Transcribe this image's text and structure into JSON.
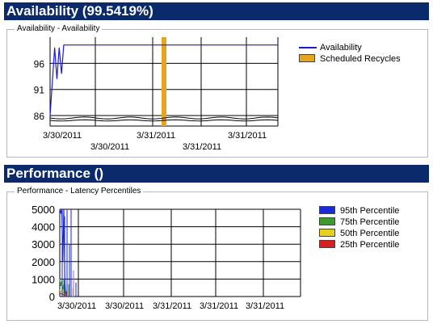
{
  "availability": {
    "header_title": "Availability (99.5419%)",
    "group_title": "Availability - Availability",
    "legend": [
      {
        "label": "Availability",
        "color": "#1a1adc",
        "kind": "line"
      },
      {
        "label": "Scheduled Recycles",
        "color": "#e6a51e",
        "kind": "box"
      }
    ]
  },
  "performance": {
    "header_title": "Performance ()",
    "group_title": "Performance - Latency Percentiles",
    "legend": [
      {
        "label": "95th Percentile",
        "color": "#1a2ad6",
        "kind": "box"
      },
      {
        "label": "75th Percentile",
        "color": "#3c9a2e",
        "kind": "box"
      },
      {
        "label": "50th Percentile",
        "color": "#e6d21e",
        "kind": "box"
      },
      {
        "label": "25th Percentile",
        "color": "#d81e1e",
        "kind": "box"
      }
    ]
  },
  "chart_data": [
    {
      "type": "line",
      "title": "Availability - Availability",
      "ylim": [
        84,
        101
      ],
      "y_ticks": [
        86,
        91,
        96
      ],
      "x_tick_labels_row1": [
        "3/30/2011",
        "3/31/2011",
        "3/31/2011"
      ],
      "x_tick_labels_row2": [
        "3/30/2011",
        "3/31/2011"
      ],
      "grid": true,
      "legend_position": "right",
      "series": [
        {
          "name": "Availability",
          "color": "#1a1adc",
          "x": [
            0,
            0.02,
            0.03,
            0.04,
            0.05,
            0.06,
            1
          ],
          "values": [
            86,
            99,
            93,
            99,
            94,
            99.5,
            99.5
          ]
        },
        {
          "name": "Scheduled Recycles",
          "color": "#e6a51e",
          "x": [
            0.5
          ],
          "values": [
            101
          ]
        }
      ]
    },
    {
      "type": "area",
      "title": "Performance - Latency Percentiles",
      "ylim": [
        0,
        5000
      ],
      "y_ticks": [
        0,
        1000,
        2000,
        3000,
        4000,
        5000
      ],
      "x_tick_labels_row1": [
        "3/30/2011",
        "3/31/2011",
        "3/31/2011"
      ],
      "x_tick_labels_row2": [
        "3/30/2011",
        "3/31/2011"
      ],
      "grid": true,
      "legend_position": "right",
      "series": [
        {
          "name": "95th Percentile",
          "color": "#1a2ad6",
          "x": [
            0,
            0.01,
            0.02,
            0.03,
            0.04,
            0.05,
            0.06
          ],
          "values": [
            5000,
            4800,
            5000,
            2000,
            5000,
            800,
            0
          ]
        },
        {
          "name": "75th Percentile",
          "color": "#3c9a2e",
          "x": [
            0,
            0.01,
            0.02,
            0.03,
            0.04,
            0.05,
            0.06
          ],
          "values": [
            1000,
            600,
            900,
            400,
            700,
            300,
            0
          ]
        },
        {
          "name": "50th Percentile",
          "color": "#e6d21e",
          "x": [
            0,
            0.01,
            0.02,
            0.03,
            0.04,
            0.05,
            0.06
          ],
          "values": [
            400,
            300,
            350,
            200,
            250,
            100,
            0
          ]
        },
        {
          "name": "25th Percentile",
          "color": "#d81e1e",
          "x": [
            0,
            0.01,
            0.02,
            0.03,
            0.04,
            0.05,
            0.06
          ],
          "values": [
            200,
            150,
            180,
            100,
            120,
            50,
            0
          ]
        }
      ]
    }
  ]
}
